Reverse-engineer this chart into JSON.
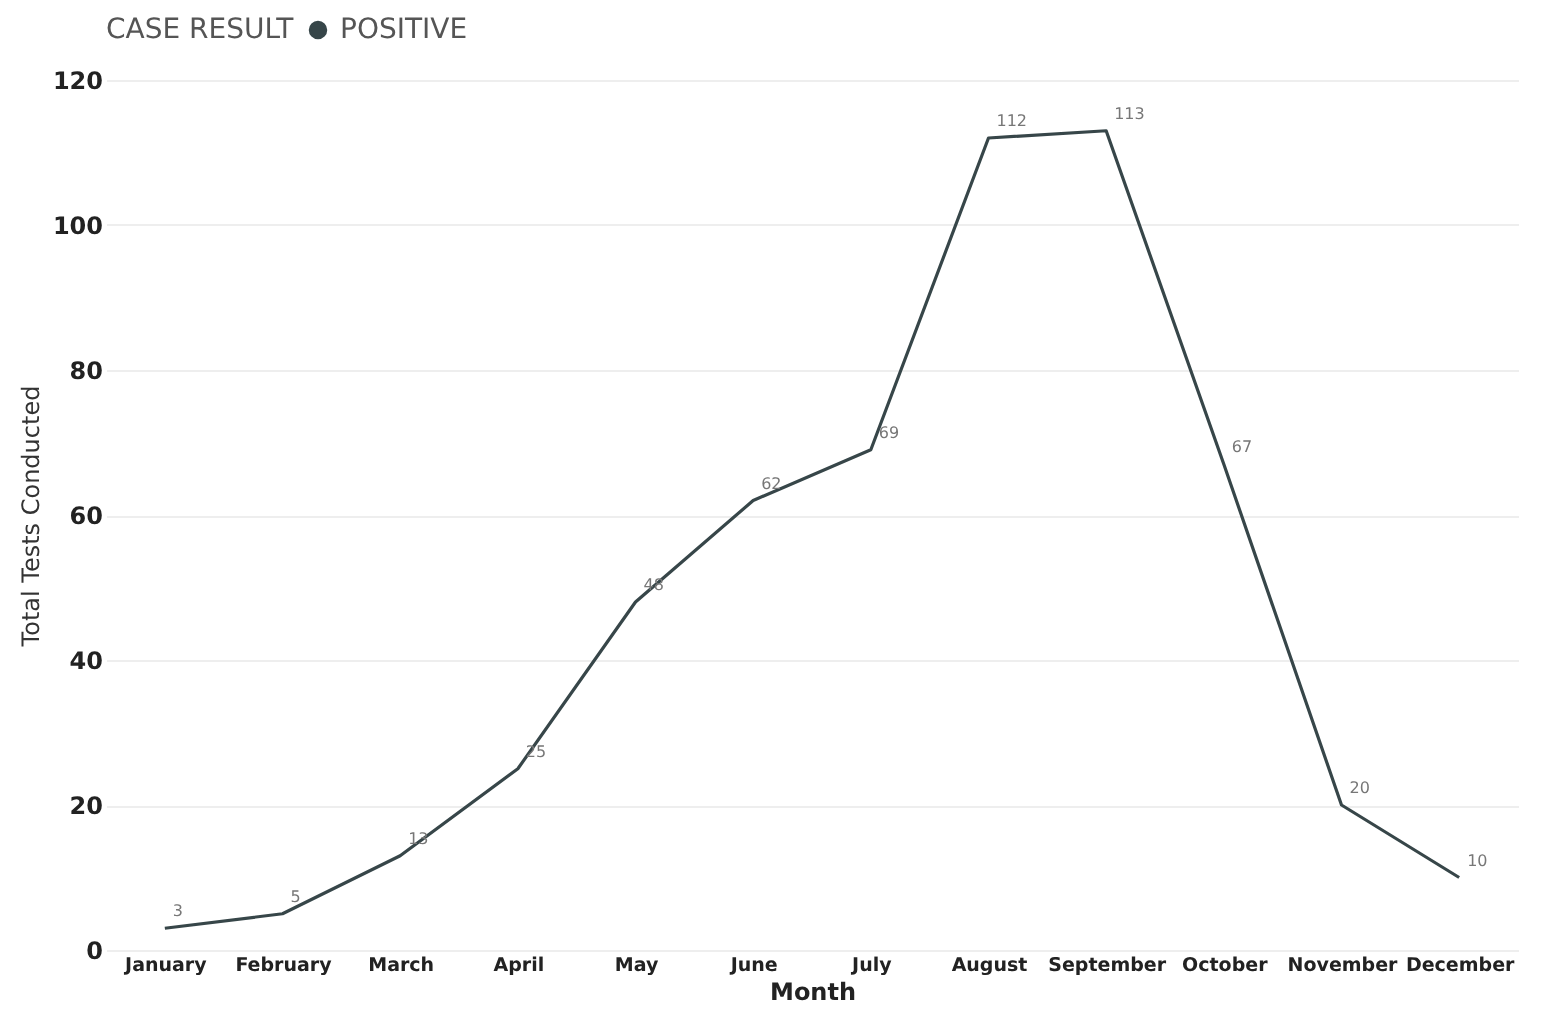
{
  "chart_data": {
    "type": "line",
    "legend_title": "CASE RESULT",
    "xlabel": "Month",
    "ylabel": "Total Tests Conducted",
    "categories": [
      "January",
      "February",
      "March",
      "April",
      "May",
      "June",
      "July",
      "August",
      "September",
      "October",
      "November",
      "December"
    ],
    "series": [
      {
        "name": "POSITIVE",
        "color": "#374649",
        "values": [
          3,
          5,
          13,
          25,
          48,
          62,
          69,
          112,
          113,
          67,
          20,
          10
        ]
      }
    ],
    "ylim": [
      0,
      120
    ],
    "yticks": [
      0,
      20,
      40,
      60,
      80,
      100,
      120
    ],
    "grid": "y",
    "legend": "top",
    "data_labels": true,
    "marker": "none"
  }
}
